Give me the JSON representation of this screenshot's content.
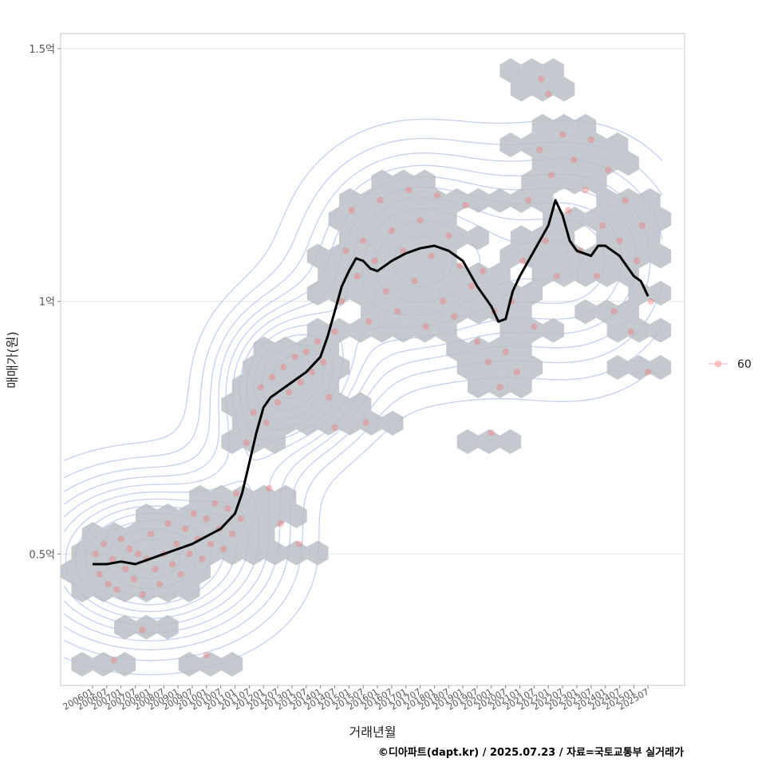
{
  "chart_data": {
    "type": "scatter",
    "xlabel": "거래년월",
    "ylabel": "매매가(원)",
    "caption": "©디아파트(dapt.kr) / 2025.07.23 / 자료=국토교통부 실거래가",
    "y_ticks": [
      {
        "value": 0.5,
        "label": "0.5억"
      },
      {
        "value": 1.0,
        "label": "1억"
      },
      {
        "value": 1.5,
        "label": "1.5억"
      }
    ],
    "x_ticks": [
      "200601",
      "200607",
      "200701",
      "200707",
      "200801",
      "200807",
      "200901",
      "200907",
      "201001",
      "201007",
      "201101",
      "201107",
      "201201",
      "201207",
      "201301",
      "201307",
      "201401",
      "201407",
      "201501",
      "201507",
      "201601",
      "201607",
      "201701",
      "201707",
      "201801",
      "201807",
      "201901",
      "201907",
      "202001",
      "202007",
      "202101",
      "202107",
      "202201",
      "202207",
      "202301",
      "202307",
      "202401",
      "202407",
      "202501",
      "202507"
    ],
    "ylim": [
      0.24,
      1.53
    ],
    "legend": {
      "entries": [
        {
          "label": "60",
          "color": "#f08080"
        }
      ],
      "position": "right"
    },
    "series": [
      {
        "name": "60",
        "kind": "trend-line",
        "color": "#000000",
        "points": [
          [
            0,
            0.48
          ],
          [
            1,
            0.48
          ],
          [
            2,
            0.485
          ],
          [
            3,
            0.48
          ],
          [
            4,
            0.49
          ],
          [
            5,
            0.5
          ],
          [
            6,
            0.51
          ],
          [
            7,
            0.52
          ],
          [
            8,
            0.535
          ],
          [
            9,
            0.55
          ],
          [
            10,
            0.58
          ],
          [
            10.5,
            0.62
          ],
          [
            11,
            0.68
          ],
          [
            11.5,
            0.74
          ],
          [
            12,
            0.79
          ],
          [
            12.5,
            0.81
          ],
          [
            13,
            0.82
          ],
          [
            14,
            0.84
          ],
          [
            15,
            0.86
          ],
          [
            16,
            0.89
          ],
          [
            16.5,
            0.93
          ],
          [
            17,
            0.98
          ],
          [
            17.5,
            1.03
          ],
          [
            18,
            1.06
          ],
          [
            18.5,
            1.085
          ],
          [
            19,
            1.08
          ],
          [
            19.5,
            1.065
          ],
          [
            20,
            1.06
          ],
          [
            21,
            1.08
          ],
          [
            22,
            1.095
          ],
          [
            23,
            1.105
          ],
          [
            24,
            1.11
          ],
          [
            25,
            1.1
          ],
          [
            26,
            1.08
          ],
          [
            27,
            1.03
          ],
          [
            28,
            0.99
          ],
          [
            28.5,
            0.96
          ],
          [
            29,
            0.965
          ],
          [
            29.5,
            1.02
          ],
          [
            30,
            1.05
          ],
          [
            31,
            1.1
          ],
          [
            32,
            1.15
          ],
          [
            32.5,
            1.2
          ],
          [
            33,
            1.17
          ],
          [
            33.5,
            1.12
          ],
          [
            34,
            1.1
          ],
          [
            35,
            1.09
          ],
          [
            35.5,
            1.11
          ],
          [
            36,
            1.11
          ],
          [
            37,
            1.09
          ],
          [
            38,
            1.05
          ],
          [
            38.5,
            1.04
          ],
          [
            39,
            1.01
          ]
        ]
      },
      {
        "name": "60",
        "kind": "points",
        "color": "#f08080",
        "points": [
          [
            0.2,
            0.5
          ],
          [
            0.5,
            0.46
          ],
          [
            0.8,
            0.52
          ],
          [
            1.1,
            0.44
          ],
          [
            1.4,
            0.49
          ],
          [
            1.7,
            0.43
          ],
          [
            2,
            0.53
          ],
          [
            2.3,
            0.47
          ],
          [
            2.6,
            0.51
          ],
          [
            2.9,
            0.45
          ],
          [
            3.2,
            0.5
          ],
          [
            3.5,
            0.42
          ],
          [
            3.8,
            0.49
          ],
          [
            4.1,
            0.54
          ],
          [
            4.4,
            0.47
          ],
          [
            4.7,
            0.44
          ],
          [
            5,
            0.5
          ],
          [
            5.3,
            0.56
          ],
          [
            5.6,
            0.48
          ],
          [
            5.9,
            0.52
          ],
          [
            6.2,
            0.46
          ],
          [
            6.5,
            0.55
          ],
          [
            6.8,
            0.5
          ],
          [
            7.1,
            0.58
          ],
          [
            7.4,
            0.53
          ],
          [
            7.7,
            0.49
          ],
          [
            8,
            0.57
          ],
          [
            8.3,
            0.52
          ],
          [
            8.6,
            0.6
          ],
          [
            8.9,
            0.55
          ],
          [
            9.2,
            0.51
          ],
          [
            9.5,
            0.59
          ],
          [
            9.8,
            0.54
          ],
          [
            10.1,
            0.62
          ],
          [
            10.4,
            0.57
          ],
          [
            1.5,
            0.29
          ],
          [
            3.5,
            0.35
          ],
          [
            8,
            0.3
          ],
          [
            10.8,
            0.72
          ],
          [
            11.3,
            0.78
          ],
          [
            11.8,
            0.83
          ],
          [
            12.2,
            0.76
          ],
          [
            12.6,
            0.85
          ],
          [
            13,
            0.8
          ],
          [
            13.4,
            0.87
          ],
          [
            13.8,
            0.82
          ],
          [
            14.2,
            0.89
          ],
          [
            14.6,
            0.84
          ],
          [
            15,
            0.9
          ],
          [
            15.4,
            0.86
          ],
          [
            15.8,
            0.92
          ],
          [
            16.2,
            0.88
          ],
          [
            16.6,
            0.81
          ],
          [
            17,
            0.94
          ],
          [
            12.4,
            0.63
          ],
          [
            13.2,
            0.56
          ],
          [
            14.5,
            0.52
          ],
          [
            17.5,
            1.0
          ],
          [
            17.8,
            1.1
          ],
          [
            18.2,
            1.18
          ],
          [
            18.6,
            1.05
          ],
          [
            19,
            1.12
          ],
          [
            19.4,
            0.96
          ],
          [
            19.8,
            1.08
          ],
          [
            20.2,
            1.2
          ],
          [
            20.6,
            1.02
          ],
          [
            21,
            1.14
          ],
          [
            21.4,
            0.98
          ],
          [
            21.8,
            1.1
          ],
          [
            22.2,
            1.22
          ],
          [
            22.6,
            1.04
          ],
          [
            23,
            1.16
          ],
          [
            23.4,
            0.95
          ],
          [
            23.8,
            1.09
          ],
          [
            24.2,
            1.21
          ],
          [
            24.6,
            1.0
          ],
          [
            25,
            1.13
          ],
          [
            25.4,
            0.97
          ],
          [
            25.8,
            1.07
          ],
          [
            26.2,
            1.19
          ],
          [
            26.6,
            1.03
          ],
          [
            27,
            0.92
          ],
          [
            27.4,
            1.06
          ],
          [
            27.8,
            0.88
          ],
          [
            28.2,
            0.98
          ],
          [
            28.6,
            0.83
          ],
          [
            29,
            0.9
          ],
          [
            29.4,
            1.0
          ],
          [
            29.8,
            0.86
          ],
          [
            30.2,
            1.08
          ],
          [
            30.6,
            1.2
          ],
          [
            31,
            0.95
          ],
          [
            31.4,
            1.3
          ],
          [
            31.8,
            1.12
          ],
          [
            32.2,
            1.25
          ],
          [
            32.6,
            1.05
          ],
          [
            33,
            1.33
          ],
          [
            33.4,
            1.18
          ],
          [
            33.8,
            1.28
          ],
          [
            34.2,
            1.1
          ],
          [
            34.6,
            1.22
          ],
          [
            35,
            1.32
          ],
          [
            35.4,
            1.05
          ],
          [
            35.8,
            1.15
          ],
          [
            36.2,
            1.26
          ],
          [
            36.6,
            0.98
          ],
          [
            37,
            1.12
          ],
          [
            37.4,
            1.2
          ],
          [
            37.8,
            0.94
          ],
          [
            38.2,
            1.08
          ],
          [
            38.6,
            1.15
          ],
          [
            39,
            0.86
          ],
          [
            39.2,
            1.0
          ],
          [
            31.5,
            1.44
          ],
          [
            32,
            1.41
          ],
          [
            28,
            0.74
          ],
          [
            19.2,
            0.76
          ],
          [
            17,
            0.75
          ]
        ]
      }
    ],
    "contour_levels": 12,
    "hexbin": true,
    "grid": true
  }
}
